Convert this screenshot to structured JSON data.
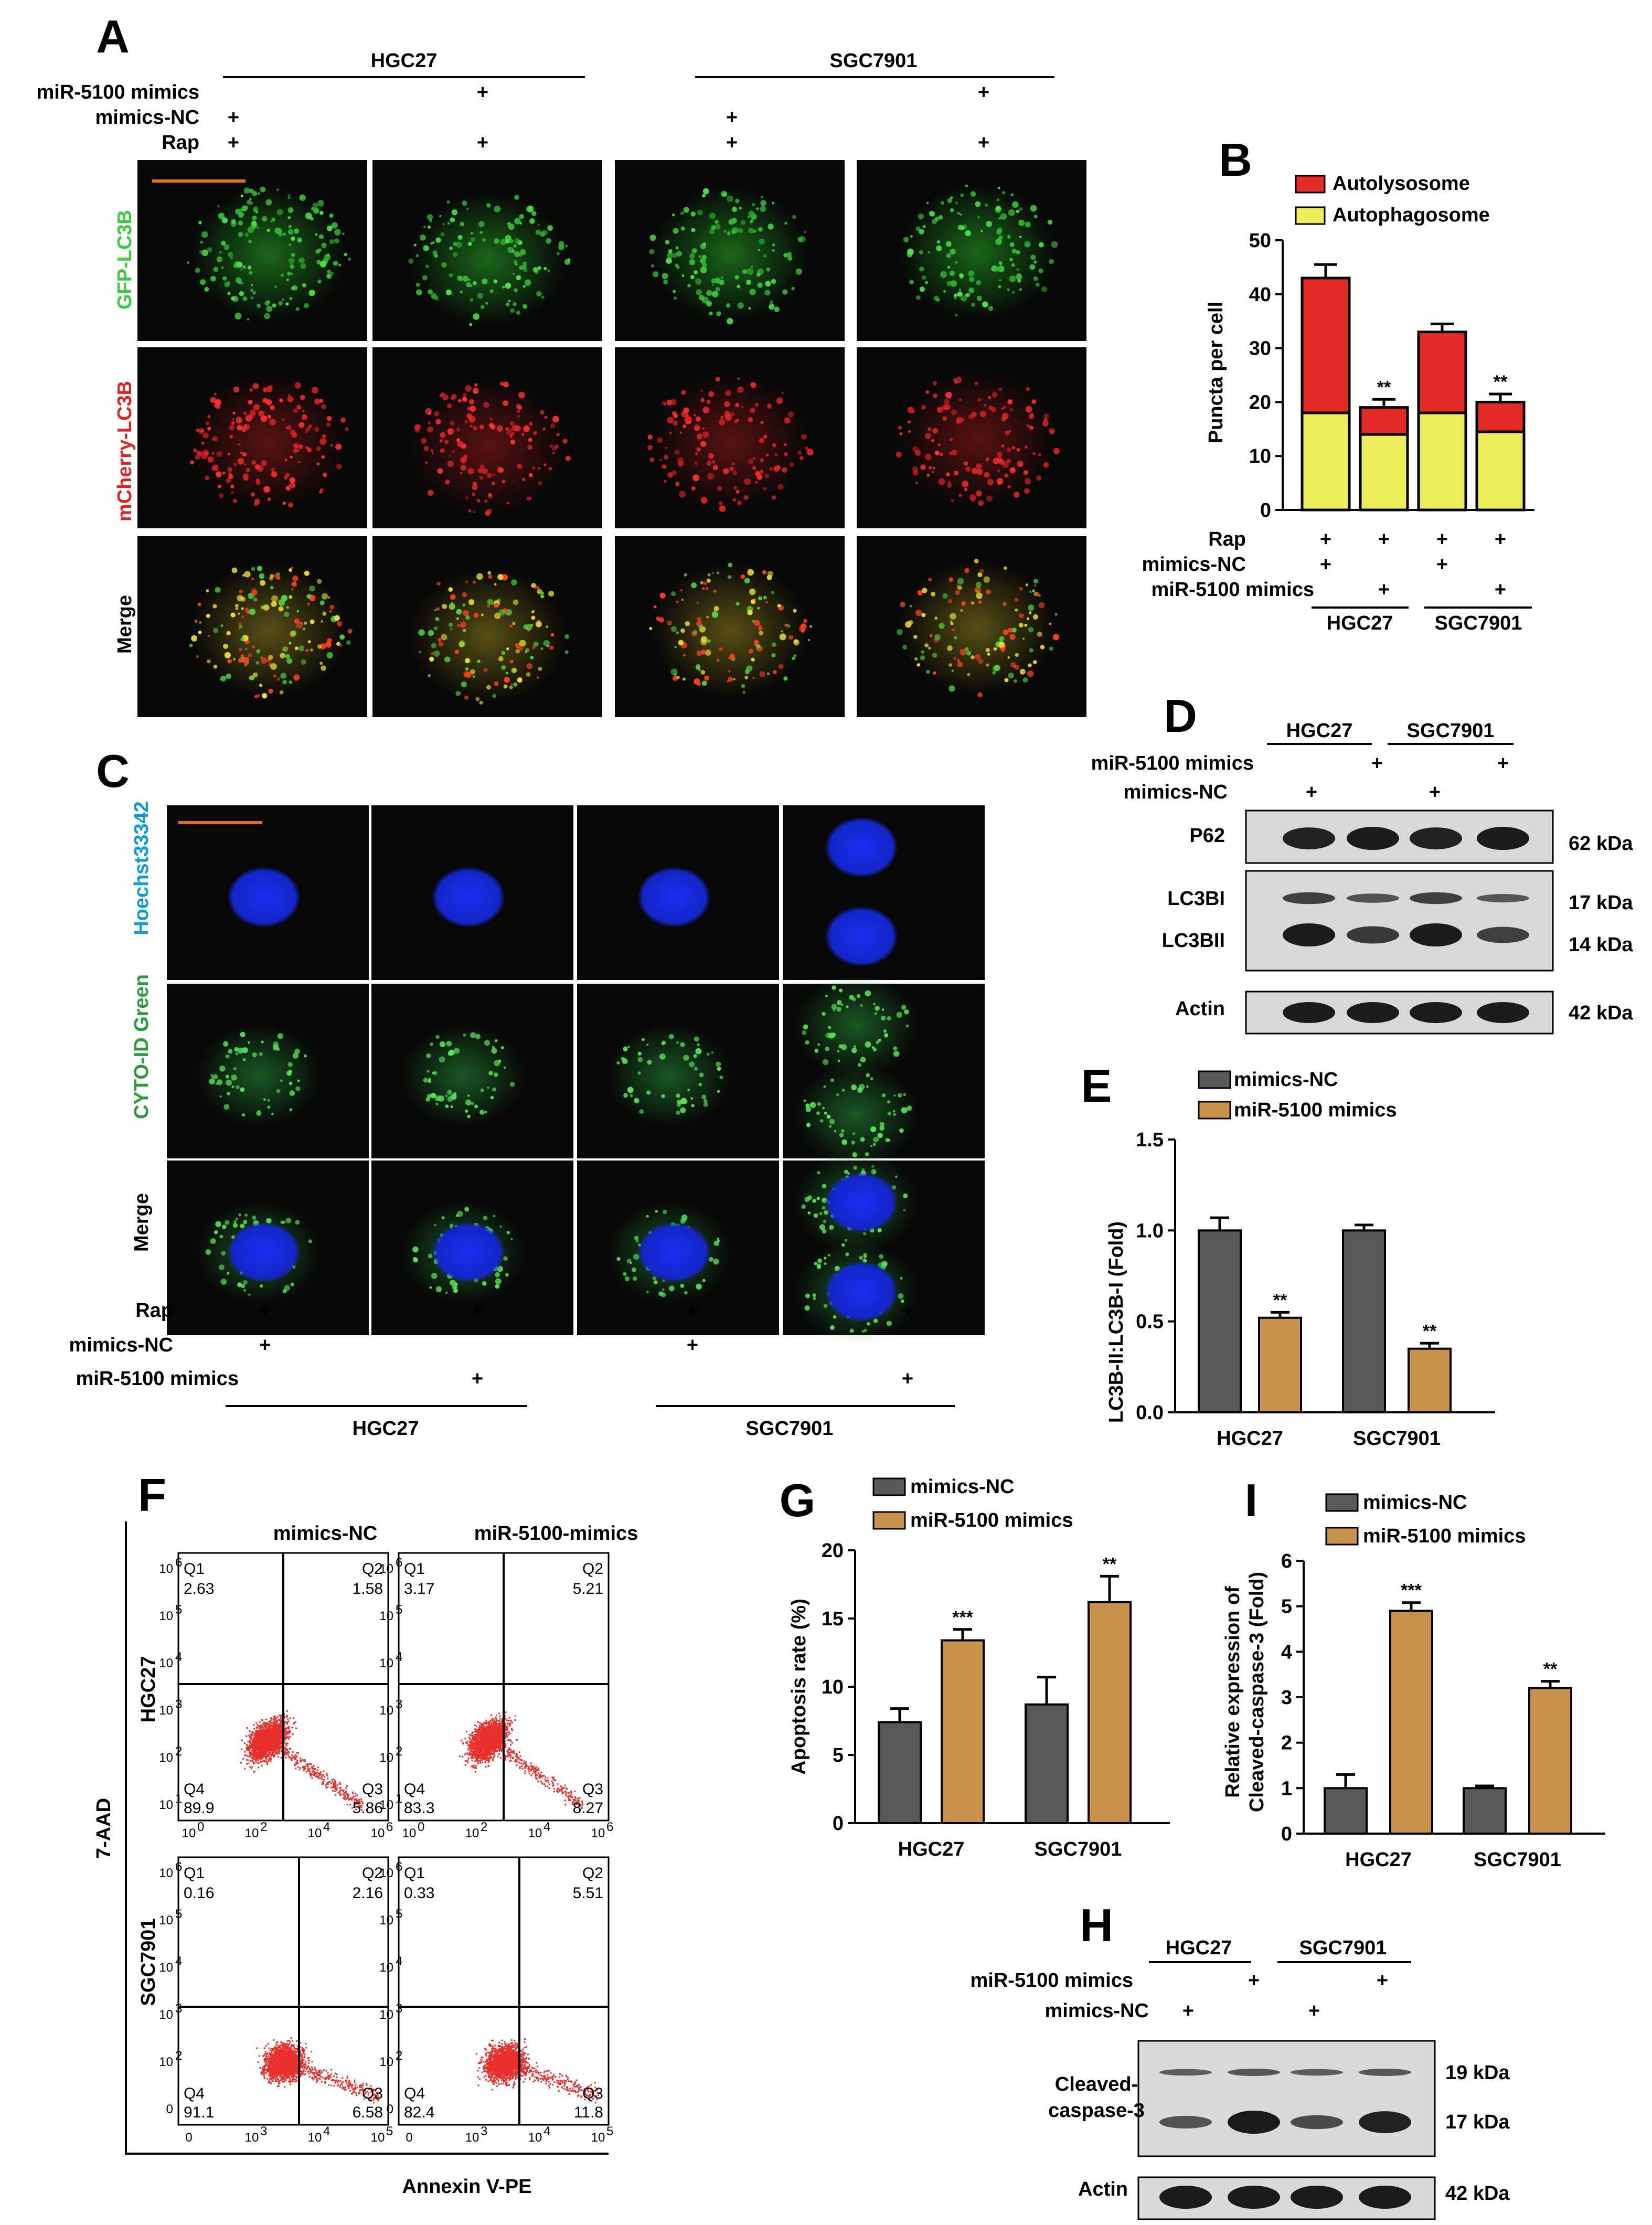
{
  "panels": {
    "A": "A",
    "B": "B",
    "C": "C",
    "D": "D",
    "E": "E",
    "F": "F",
    "G": "G",
    "H": "H",
    "I": "I"
  },
  "colors": {
    "nc": "#595959",
    "mimics": "#c8914e",
    "autolysosome": "#e32b26",
    "autophagosome": "#eded5a",
    "scatter": "#e8302a",
    "gfp": "#3acc3a",
    "mcherry": "#dd2525",
    "hoechst": "#0c9bd9",
    "hoechst_nuc": "#1a2ef0",
    "cyto": "#2a9a3a"
  },
  "panelA": {
    "groups": [
      "HGC27",
      "SGC7901"
    ],
    "rows": [
      "miR-5100 mimics",
      "mimics-NC",
      "Rap"
    ],
    "signs": [
      [
        "",
        "+",
        "",
        "+"
      ],
      [
        "+",
        "",
        "+",
        ""
      ],
      [
        "+",
        "+",
        "+",
        "+"
      ]
    ],
    "channels": [
      "GFP-LC3B",
      "mCherry-LC3B",
      "Merge"
    ]
  },
  "panelC": {
    "channels": [
      "Hoechst33342",
      "CYTO-ID Green",
      "Merge"
    ],
    "rows": [
      "Rap",
      "mimics-NC",
      "miR-5100 mimics"
    ],
    "signs": [
      [
        "+",
        "+",
        "+",
        "+"
      ],
      [
        "+",
        "",
        "+",
        ""
      ],
      [
        "",
        "+",
        "",
        "+"
      ]
    ],
    "groups": [
      "HGC27",
      "SGC7901"
    ]
  },
  "panelD": {
    "groups": [
      "HGC27",
      "SGC7901"
    ],
    "rows": [
      "miR-5100 mimics",
      "mimics-NC"
    ],
    "signs": [
      [
        "",
        "+",
        "",
        "+"
      ],
      [
        "+",
        "",
        "+",
        ""
      ]
    ],
    "bands": [
      "P62",
      "LC3BI",
      "LC3BII",
      "Actin"
    ],
    "kda": [
      "62 kDa",
      "17 kDa",
      "14 kDa",
      "42 kDa"
    ]
  },
  "panelF": {
    "cols": [
      "mimics-NC",
      "miR-5100-mimics"
    ],
    "rows": [
      "HGC27",
      "SGC7901"
    ],
    "ylabel": "7-AAD",
    "xlabel": "Annexin V-PE",
    "plots": [
      {
        "q1": "Q1",
        "q2": "Q2",
        "q3": "Q3",
        "q4": "Q4",
        "v1": "2.63",
        "v2": "1.58",
        "v3": "5.86",
        "v4": "89.9"
      },
      {
        "q1": "Q1",
        "q2": "Q2",
        "q3": "Q3",
        "q4": "Q4",
        "v1": "3.17",
        "v2": "5.21",
        "v3": "8.27",
        "v4": "83.3"
      },
      {
        "q1": "Q1",
        "q2": "Q2",
        "q3": "Q3",
        "q4": "Q4",
        "v1": "0.16",
        "v2": "2.16",
        "v3": "6.58",
        "v4": "91.1"
      },
      {
        "q1": "Q1",
        "q2": "Q2",
        "q3": "Q3",
        "q4": "Q4",
        "v1": "0.33",
        "v2": "5.51",
        "v3": "11.8",
        "v4": "82.4"
      }
    ],
    "yticks_top": [
      "10",
      "10",
      "10",
      "10",
      "10",
      "10"
    ],
    "yexp_top": [
      "1",
      "2",
      "3",
      "4",
      "5",
      "6"
    ],
    "xticks_top": [
      "10",
      "10",
      "10",
      "10"
    ],
    "xexp_top": [
      "0",
      "2",
      "4",
      "6"
    ],
    "yticks_bot": [
      "0",
      "10",
      "10",
      "10",
      "10",
      "10"
    ],
    "yexp_bot": [
      "",
      "2",
      "3",
      "4",
      "5",
      "6"
    ],
    "xticks_bot": [
      "0",
      "10",
      "10",
      "10"
    ],
    "xexp_bot": [
      "",
      "3",
      "4",
      "5"
    ]
  },
  "panelH": {
    "groups": [
      "HGC27",
      "SGC7901"
    ],
    "rows": [
      "miR-5100 mimics",
      "mimics-NC"
    ],
    "signs": [
      [
        "",
        "+",
        "",
        "+"
      ],
      [
        "+",
        "",
        "+",
        ""
      ]
    ],
    "bands": [
      "Cleaved-",
      "caspase-3",
      "Actin"
    ],
    "kda": [
      "19 kDa",
      "17 kDa",
      "42 kDa"
    ]
  },
  "chart_data": [
    {
      "id": "B",
      "type": "bar",
      "stacked": true,
      "categories": [
        "HGC27 mimics-NC",
        "HGC27 miR-5100 mimics",
        "SGC7901 mimics-NC",
        "SGC7901 miR-5100 mimics"
      ],
      "series": [
        {
          "name": "Autophagosome",
          "values": [
            18,
            14,
            18,
            14.5
          ],
          "errors": [
            2.5,
            1.5,
            2,
            1.5
          ]
        },
        {
          "name": "Autolysosome",
          "values": [
            25,
            5,
            15,
            5.5
          ],
          "errors": [
            2.5,
            1.5,
            1.5,
            1.5
          ]
        }
      ],
      "significance": [
        "",
        "**",
        "",
        "**"
      ],
      "ylabel": "Puncta per cell",
      "ylim": [
        0,
        50
      ],
      "yticks": [
        "0",
        "10",
        "20",
        "30",
        "40",
        "50"
      ],
      "conditions": [
        {
          "label": "Rap",
          "signs": [
            "+",
            "+",
            "+",
            "+"
          ]
        },
        {
          "label": "mimics-NC",
          "signs": [
            "+",
            "",
            "+",
            ""
          ]
        },
        {
          "label": "miR-5100 mimics",
          "signs": [
            "",
            "+",
            "",
            "+"
          ]
        }
      ],
      "groups": [
        "HGC27",
        "SGC7901"
      ]
    },
    {
      "id": "E",
      "type": "bar",
      "categories": [
        "HGC27",
        "SGC7901"
      ],
      "series": [
        {
          "name": "mimics-NC",
          "values": [
            1.0,
            1.0
          ],
          "errors": [
            0.07,
            0.03
          ]
        },
        {
          "name": "miR-5100 mimics",
          "values": [
            0.52,
            0.35
          ],
          "errors": [
            0.03,
            0.03
          ]
        }
      ],
      "significance": [
        [
          "",
          ""
        ],
        [
          "**",
          "**"
        ]
      ],
      "ylabel": "LC3B-II:LC3B-I (Fold)",
      "ylim": [
        0,
        1.5
      ],
      "yticks": [
        "0.0",
        "0.5",
        "1.0",
        "1.5"
      ]
    },
    {
      "id": "G",
      "type": "bar",
      "categories": [
        "HGC27",
        "SGC7901"
      ],
      "series": [
        {
          "name": "mimics-NC",
          "values": [
            7.4,
            8.7
          ],
          "errors": [
            1.0,
            2.0
          ]
        },
        {
          "name": "miR-5100 mimics",
          "values": [
            13.4,
            16.2
          ],
          "errors": [
            0.8,
            1.9
          ]
        }
      ],
      "significance": [
        [
          "",
          ""
        ],
        [
          "***",
          "**"
        ]
      ],
      "ylabel": "Apoptosis rate (%)",
      "ylim": [
        0,
        20
      ],
      "yticks": [
        "0",
        "5",
        "10",
        "15",
        "20"
      ]
    },
    {
      "id": "I",
      "type": "bar",
      "categories": [
        "HGC27",
        "SGC7901"
      ],
      "series": [
        {
          "name": "mimics-NC",
          "values": [
            1.0,
            1.0
          ],
          "errors": [
            0.3,
            0.05
          ]
        },
        {
          "name": "miR-5100 mimics",
          "values": [
            4.9,
            3.2
          ],
          "errors": [
            0.18,
            0.15
          ]
        }
      ],
      "significance": [
        [
          "",
          ""
        ],
        [
          "***",
          "**"
        ]
      ],
      "ylabel": "Relative expression of",
      "ylabel2": "Cleaved-caspase-3 (Fold)",
      "ylim": [
        0,
        6
      ],
      "yticks": [
        "0",
        "1",
        "2",
        "3",
        "4",
        "5",
        "6"
      ]
    }
  ]
}
